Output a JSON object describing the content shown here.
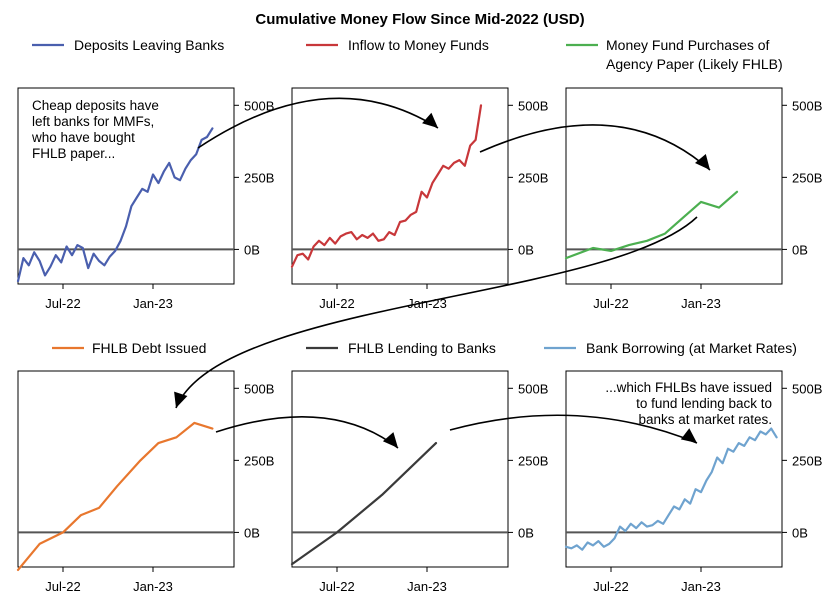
{
  "figure": {
    "title": "Cumulative Money Flow Since Mid-2022 (USD)"
  },
  "chart_data": [
    {
      "type": "line",
      "series": [
        {
          "name": "Deposits Leaving Banks",
          "color": "#4a5fae"
        }
      ],
      "x_tick_labels": [
        "Jul-22",
        "Jan-23"
      ],
      "y_tick_labels": [
        "500B",
        "250B",
        "0B"
      ],
      "y_ticks": [
        500,
        250,
        0
      ],
      "ylim": [
        -120,
        560
      ],
      "annotation": [
        "Cheap deposits have",
        "left banks for MMFs,",
        "who have bought",
        "FHLB paper..."
      ],
      "points": [
        [
          0,
          -110
        ],
        [
          0.3,
          -30
        ],
        [
          0.6,
          -55
        ],
        [
          0.9,
          -10
        ],
        [
          1.2,
          -40
        ],
        [
          1.5,
          -90
        ],
        [
          1.8,
          -60
        ],
        [
          2.1,
          -20
        ],
        [
          2.4,
          -45
        ],
        [
          2.7,
          10
        ],
        [
          3.0,
          -20
        ],
        [
          3.3,
          15
        ],
        [
          3.6,
          5
        ],
        [
          3.9,
          -65
        ],
        [
          4.2,
          -15
        ],
        [
          4.5,
          -40
        ],
        [
          4.8,
          -55
        ],
        [
          5.1,
          -25
        ],
        [
          5.4,
          -5
        ],
        [
          5.7,
          30
        ],
        [
          6.0,
          80
        ],
        [
          6.3,
          150
        ],
        [
          6.6,
          180
        ],
        [
          6.9,
          210
        ],
        [
          7.2,
          200
        ],
        [
          7.5,
          260
        ],
        [
          7.8,
          230
        ],
        [
          8.1,
          270
        ],
        [
          8.4,
          300
        ],
        [
          8.7,
          250
        ],
        [
          9.0,
          240
        ],
        [
          9.3,
          280
        ],
        [
          9.6,
          310
        ],
        [
          9.9,
          330
        ],
        [
          10.2,
          380
        ],
        [
          10.5,
          390
        ],
        [
          10.8,
          420
        ]
      ]
    },
    {
      "type": "line",
      "series": [
        {
          "name": "Inflow to Money Funds",
          "color": "#c8373a"
        }
      ],
      "x_tick_labels": [
        "Jul-22",
        "Jan-23"
      ],
      "y_tick_labels": [
        "500B",
        "250B",
        "0B"
      ],
      "y_ticks": [
        500,
        250,
        0
      ],
      "ylim": [
        -120,
        560
      ],
      "points": [
        [
          0,
          -60
        ],
        [
          0.3,
          -20
        ],
        [
          0.6,
          -15
        ],
        [
          0.9,
          -35
        ],
        [
          1.2,
          10
        ],
        [
          1.5,
          30
        ],
        [
          1.8,
          15
        ],
        [
          2.1,
          40
        ],
        [
          2.4,
          20
        ],
        [
          2.7,
          45
        ],
        [
          3.0,
          55
        ],
        [
          3.3,
          60
        ],
        [
          3.6,
          35
        ],
        [
          3.9,
          50
        ],
        [
          4.2,
          40
        ],
        [
          4.5,
          55
        ],
        [
          4.8,
          30
        ],
        [
          5.1,
          35
        ],
        [
          5.4,
          60
        ],
        [
          5.7,
          50
        ],
        [
          6.0,
          95
        ],
        [
          6.3,
          100
        ],
        [
          6.6,
          120
        ],
        [
          6.9,
          130
        ],
        [
          7.2,
          200
        ],
        [
          7.5,
          180
        ],
        [
          7.8,
          230
        ],
        [
          8.1,
          260
        ],
        [
          8.4,
          290
        ],
        [
          8.7,
          280
        ],
        [
          9.0,
          300
        ],
        [
          9.3,
          310
        ],
        [
          9.6,
          290
        ],
        [
          9.9,
          360
        ],
        [
          10.2,
          380
        ],
        [
          10.5,
          500
        ]
      ]
    },
    {
      "type": "line",
      "series": [
        {
          "name": "Money Fund Purchases of Agency Paper (Likely FHLB)",
          "color": "#4caf50"
        }
      ],
      "legend_lines": [
        "Money Fund Purchases of",
        "Agency Paper (Likely FHLB)"
      ],
      "x_tick_labels": [
        "Jul-22",
        "Jan-23"
      ],
      "y_tick_labels": [
        "500B",
        "250B",
        "0B"
      ],
      "y_ticks": [
        500,
        250,
        0
      ],
      "ylim": [
        -120,
        560
      ],
      "points": [
        [
          0,
          -30
        ],
        [
          1.5,
          5
        ],
        [
          2.5,
          -5
        ],
        [
          3.5,
          15
        ],
        [
          4.5,
          30
        ],
        [
          5.5,
          55
        ],
        [
          6.5,
          110
        ],
        [
          7.5,
          165
        ],
        [
          8.5,
          145
        ],
        [
          9.5,
          200
        ]
      ]
    },
    {
      "type": "line",
      "series": [
        {
          "name": "FHLB Debt Issued",
          "color": "#e8772e"
        }
      ],
      "x_tick_labels": [
        "Jul-22",
        "Jan-23"
      ],
      "y_tick_labels": [
        "500B",
        "250B",
        "0B"
      ],
      "y_ticks": [
        500,
        250,
        0
      ],
      "ylim": [
        -120,
        560
      ],
      "points": [
        [
          0,
          -130
        ],
        [
          1.2,
          -40
        ],
        [
          2.5,
          0
        ],
        [
          3.5,
          60
        ],
        [
          4.5,
          85
        ],
        [
          5.5,
          160
        ],
        [
          6.8,
          250
        ],
        [
          7.8,
          310
        ],
        [
          8.8,
          330
        ],
        [
          9.8,
          380
        ],
        [
          10.8,
          360
        ]
      ]
    },
    {
      "type": "line",
      "series": [
        {
          "name": "FHLB Lending to Banks",
          "color": "#3a3a3a"
        }
      ],
      "x_tick_labels": [
        "Jul-22",
        "Jan-23"
      ],
      "y_tick_labels": [
        "500B",
        "250B",
        "0B"
      ],
      "y_ticks": [
        500,
        250,
        0
      ],
      "ylim": [
        -120,
        560
      ],
      "points": [
        [
          0,
          -110
        ],
        [
          2.5,
          0
        ],
        [
          5.0,
          130
        ],
        [
          8.0,
          310
        ]
      ]
    },
    {
      "type": "line",
      "series": [
        {
          "name": "Bank Borrowing (at Market Rates)",
          "color": "#6fa3cf"
        }
      ],
      "x_tick_labels": [
        "Jul-22",
        "Jan-23"
      ],
      "y_tick_labels": [
        "500B",
        "250B",
        "0B"
      ],
      "y_ticks": [
        500,
        250,
        0
      ],
      "ylim": [
        -120,
        560
      ],
      "annotation": [
        "...which FHLBs have issued",
        "to fund lending back to",
        "banks at market rates."
      ],
      "points": [
        [
          0,
          -50
        ],
        [
          0.3,
          -55
        ],
        [
          0.6,
          -45
        ],
        [
          0.9,
          -60
        ],
        [
          1.2,
          -35
        ],
        [
          1.5,
          -45
        ],
        [
          1.8,
          -30
        ],
        [
          2.1,
          -50
        ],
        [
          2.4,
          -40
        ],
        [
          2.7,
          -20
        ],
        [
          3.0,
          20
        ],
        [
          3.3,
          5
        ],
        [
          3.6,
          30
        ],
        [
          3.9,
          15
        ],
        [
          4.2,
          35
        ],
        [
          4.5,
          20
        ],
        [
          4.8,
          25
        ],
        [
          5.1,
          40
        ],
        [
          5.4,
          30
        ],
        [
          5.7,
          60
        ],
        [
          6.0,
          90
        ],
        [
          6.3,
          80
        ],
        [
          6.6,
          115
        ],
        [
          6.9,
          100
        ],
        [
          7.2,
          150
        ],
        [
          7.5,
          140
        ],
        [
          7.8,
          180
        ],
        [
          8.1,
          210
        ],
        [
          8.4,
          260
        ],
        [
          8.7,
          240
        ],
        [
          9.0,
          290
        ],
        [
          9.3,
          280
        ],
        [
          9.6,
          310
        ],
        [
          9.9,
          300
        ],
        [
          10.2,
          330
        ],
        [
          10.5,
          320
        ],
        [
          10.8,
          350
        ],
        [
          11.1,
          340
        ],
        [
          11.4,
          360
        ],
        [
          11.7,
          330
        ]
      ]
    }
  ]
}
